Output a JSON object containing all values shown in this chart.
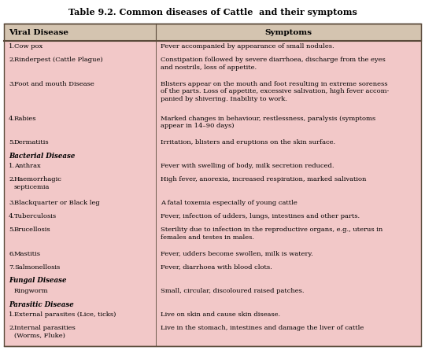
{
  "title": "Table 9.2. Common diseases of Cattle  and their symptoms",
  "bg_color": "#f2c8c8",
  "header_bg": "#d4c4b0",
  "border_color": "#5a4a3a",
  "col1_header": "Viral Disease",
  "col2_header": "Symptoms",
  "figsize": [
    5.4,
    4.45
  ],
  "dpi": 100,
  "rows": [
    {
      "type": "data",
      "num": "1.",
      "col1": "Cow pox",
      "col2": "Fever accompanied by appearance of small nodules.",
      "col2_lines": 1
    },
    {
      "type": "data",
      "num": "2.",
      "col1": "Rinderpest (Cattle Plague)",
      "col2": "Constipation followed by severe diarrhoea, discharge from the eyes\nand nostrils, loss of appetite.",
      "col2_lines": 2
    },
    {
      "type": "data",
      "num": "3.",
      "col1": "Foot and mouth Disease",
      "col2": "Blisters appear on the mouth and foot resulting in extreme soreness\nof the parts. Loss of appetite, excessive salivation, high fever accom-\npanied by shivering. Inability to work.",
      "col2_lines": 3
    },
    {
      "type": "data",
      "num": "4.",
      "col1": "Rabies",
      "col2": "Marked changes in behaviour, restlessness, paralysis (symptoms\nappear in 14–90 days)",
      "col2_lines": 2
    },
    {
      "type": "data",
      "num": "5.",
      "col1": "Dermatitis",
      "col2": "Irritation, blisters and eruptions on the skin surface.",
      "col2_lines": 1
    },
    {
      "type": "section_header",
      "col1": "Bacterial Disease"
    },
    {
      "type": "data",
      "num": "1.",
      "col1": "Anthrax",
      "col2": "Fever with swelling of body, milk secretion reduced.",
      "col2_lines": 1
    },
    {
      "type": "data",
      "num": "2.",
      "col1": "Haemorrhagic\nsepticemia",
      "col2": "High fever, anorexia, increased respiration, marked salivation",
      "col2_lines": 1
    },
    {
      "type": "data",
      "num": "3.",
      "col1": "Blackquarter or Black leg",
      "col2": "A fatal toxemia especially of young cattle",
      "col2_lines": 1
    },
    {
      "type": "data",
      "num": "4.",
      "col1": "Tuberculosis",
      "col2": "Fever, infection of udders, lungs, intestines and other parts.",
      "col2_lines": 1
    },
    {
      "type": "data",
      "num": "5.",
      "col1": "Brucellosis",
      "col2": "Sterility due to infection in the reproductive organs, e.g., uterus in\nfemales and testes in males.",
      "col2_lines": 2
    },
    {
      "type": "data",
      "num": "6.",
      "col1": "Mastitis",
      "col2": "Fever, udders become swollen, milk is watery.",
      "col2_lines": 1
    },
    {
      "type": "data",
      "num": "7.",
      "col1": "Salmonellosis",
      "col2": "Fever, diarrhoea with blood clots.",
      "col2_lines": 1
    },
    {
      "type": "section_header",
      "col1": "Fungal Disease"
    },
    {
      "type": "data",
      "num": "",
      "col1": "Ringworm",
      "col2": "Small, circular, discoloured raised patches.",
      "col2_lines": 1
    },
    {
      "type": "section_header",
      "col1": "Parasitic Disease"
    },
    {
      "type": "data",
      "num": "1.",
      "col1": "External parasites (Lice, ticks)",
      "col2": "Live on skin and cause skin disease.",
      "col2_lines": 1
    },
    {
      "type": "data",
      "num": "2.",
      "col1": "Internal parasities\n(Worms, Fluke)",
      "col2": "Live in the stomach, intestines and damage the liver of cattle",
      "col2_lines": 1
    }
  ]
}
